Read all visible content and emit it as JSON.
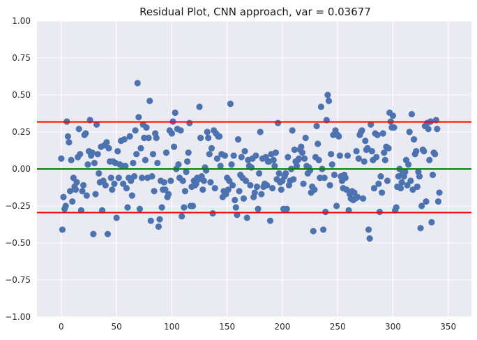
{
  "chart_data": {
    "type": "scatter",
    "title": "Residual Plot, CNN approach, var = 0.03677",
    "xlabel": "",
    "ylabel": "",
    "xlim": [
      -22,
      371
    ],
    "ylim": [
      -1.0,
      1.0
    ],
    "x_ticks": [
      0,
      50,
      100,
      150,
      200,
      250,
      300,
      350
    ],
    "x_tick_labels": [
      "0",
      "50",
      "100",
      "150",
      "200",
      "250",
      "300",
      "350"
    ],
    "y_ticks": [
      -1.0,
      -0.75,
      -0.5,
      -0.25,
      0.0,
      0.25,
      0.5,
      0.75,
      1.0
    ],
    "y_tick_labels": [
      "−1.00",
      "−0.75",
      "−0.50",
      "−0.25",
      "0.00",
      "0.25",
      "0.50",
      "0.75",
      "1.00"
    ],
    "grid": true,
    "background": "#EAEAF2",
    "point_color": "#4C72B0",
    "reference_lines": [
      {
        "y": 0.318,
        "color": "#FF0000"
      },
      {
        "y": 0.0,
        "color": "#008000"
      },
      {
        "y": -0.295,
        "color": "#FF0000"
      }
    ],
    "points": [
      [
        0,
        0.07
      ],
      [
        1,
        -0.41
      ],
      [
        2,
        -0.19
      ],
      [
        3,
        -0.27
      ],
      [
        4,
        -0.25
      ],
      [
        5,
        0.32
      ],
      [
        6,
        0.22
      ],
      [
        7,
        0.18
      ],
      [
        8,
        -0.15
      ],
      [
        9,
        0.06
      ],
      [
        10,
        -0.22
      ],
      [
        11,
        -0.06
      ],
      [
        12,
        -0.12
      ],
      [
        13,
        -0.14
      ],
      [
        14,
        -0.09
      ],
      [
        15,
        0.08
      ],
      [
        16,
        0.27
      ],
      [
        17,
        0.1
      ],
      [
        18,
        -0.28
      ],
      [
        19,
        -0.15
      ],
      [
        20,
        -0.11
      ],
      [
        21,
        0.23
      ],
      [
        22,
        0.24
      ],
      [
        23,
        -0.18
      ],
      [
        24,
        0.03
      ],
      [
        25,
        0.12
      ],
      [
        26,
        0.33
      ],
      [
        27,
        0.09
      ],
      [
        28,
        0.11
      ],
      [
        29,
        -0.44
      ],
      [
        30,
        0.04
      ],
      [
        31,
        -0.17
      ],
      [
        32,
        0.3
      ],
      [
        33,
        0.1
      ],
      [
        34,
        -0.03
      ],
      [
        35,
        -0.09
      ],
      [
        36,
        0.15
      ],
      [
        37,
        -0.28
      ],
      [
        38,
        -0.08
      ],
      [
        39,
        0.16
      ],
      [
        40,
        -0.11
      ],
      [
        41,
        0.18
      ],
      [
        42,
        -0.44
      ],
      [
        43,
        0.14
      ],
      [
        44,
        0.05
      ],
      [
        45,
        -0.06
      ],
      [
        46,
        -0.14
      ],
      [
        47,
        0.05
      ],
      [
        48,
        -0.1
      ],
      [
        49,
        0.04
      ],
      [
        50,
        -0.33
      ],
      [
        51,
        0.12
      ],
      [
        52,
        -0.06
      ],
      [
        53,
        0.03
      ],
      [
        54,
        0.19
      ],
      [
        55,
        0.02
      ],
      [
        56,
        -0.1
      ],
      [
        57,
        0.2
      ],
      [
        58,
        0.02
      ],
      [
        59,
        -0.13
      ],
      [
        60,
        -0.26
      ],
      [
        61,
        -0.06
      ],
      [
        62,
        0.22
      ],
      [
        63,
        -0.08
      ],
      [
        64,
        -0.18
      ],
      [
        65,
        0.04
      ],
      [
        66,
        -0.05
      ],
      [
        67,
        0.26
      ],
      [
        68,
        0.1
      ],
      [
        69,
        0.58
      ],
      [
        70,
        0.35
      ],
      [
        71,
        -0.27
      ],
      [
        72,
        0.14
      ],
      [
        73,
        -0.06
      ],
      [
        74,
        0.3
      ],
      [
        75,
        0.21
      ],
      [
        76,
        0.06
      ],
      [
        77,
        0.28
      ],
      [
        78,
        -0.06
      ],
      [
        79,
        0.21
      ],
      [
        80,
        0.46
      ],
      [
        81,
        -0.35
      ],
      [
        82,
        -0.05
      ],
      [
        83,
        0.1
      ],
      [
        84,
        -0.15
      ],
      [
        85,
        0.24
      ],
      [
        86,
        0.21
      ],
      [
        87,
        0.04
      ],
      [
        88,
        -0.39
      ],
      [
        89,
        -0.34
      ],
      [
        90,
        -0.08
      ],
      [
        91,
        -0.26
      ],
      [
        92,
        -0.14
      ],
      [
        93,
        -0.09
      ],
      [
        94,
        -0.14
      ],
      [
        95,
        0.11
      ],
      [
        96,
        -0.19
      ],
      [
        97,
        -0.17
      ],
      [
        98,
        0.26
      ],
      [
        99,
        -0.08
      ],
      [
        100,
        0.24
      ],
      [
        101,
        0.32
      ],
      [
        102,
        0.15
      ],
      [
        103,
        0.38
      ],
      [
        104,
        0.0
      ],
      [
        105,
        0.27
      ],
      [
        106,
        0.03
      ],
      [
        107,
        -0.06
      ],
      [
        108,
        0.26
      ],
      [
        109,
        -0.32
      ],
      [
        110,
        -0.08
      ],
      [
        111,
        -0.26
      ],
      [
        112,
        -0.15
      ],
      [
        113,
        -0.02
      ],
      [
        114,
        0.05
      ],
      [
        115,
        0.11
      ],
      [
        116,
        0.31
      ],
      [
        117,
        -0.25
      ],
      [
        118,
        -0.12
      ],
      [
        119,
        -0.25
      ],
      [
        120,
        -0.08
      ],
      [
        121,
        -0.11
      ],
      [
        122,
        -0.1
      ],
      [
        123,
        -0.06
      ],
      [
        124,
        -0.07
      ],
      [
        125,
        0.42
      ],
      [
        126,
        0.21
      ],
      [
        127,
        -0.05
      ],
      [
        128,
        -0.14
      ],
      [
        129,
        -0.08
      ],
      [
        130,
        0.01
      ],
      [
        131,
        -0.01
      ],
      [
        132,
        0.25
      ],
      [
        133,
        0.21
      ],
      [
        134,
        0.1
      ],
      [
        135,
        -0.09
      ],
      [
        136,
        0.14
      ],
      [
        137,
        -0.3
      ],
      [
        138,
        0.26
      ],
      [
        139,
        -0.13
      ],
      [
        140,
        0.24
      ],
      [
        141,
        0.07
      ],
      [
        142,
        0.22
      ],
      [
        143,
        0.22
      ],
      [
        144,
        0.02
      ],
      [
        145,
        0.1
      ],
      [
        146,
        -0.19
      ],
      [
        147,
        -0.15
      ],
      [
        148,
        0.09
      ],
      [
        149,
        -0.17
      ],
      [
        150,
        -0.06
      ],
      [
        151,
        -0.14
      ],
      [
        152,
        -0.08
      ],
      [
        153,
        0.44
      ],
      [
        154,
        0.03
      ],
      [
        155,
        -0.11
      ],
      [
        156,
        0.09
      ],
      [
        157,
        -0.21
      ],
      [
        158,
        -0.26
      ],
      [
        159,
        -0.31
      ],
      [
        160,
        0.2
      ],
      [
        161,
        -0.15
      ],
      [
        162,
        -0.04
      ],
      [
        163,
        0.08
      ],
      [
        164,
        -0.06
      ],
      [
        165,
        -0.2
      ],
      [
        166,
        0.12
      ],
      [
        167,
        -0.08
      ],
      [
        168,
        -0.33
      ],
      [
        169,
        0.06
      ],
      [
        170,
        0.02
      ],
      [
        171,
        -0.11
      ],
      [
        172,
        0.01
      ],
      [
        173,
        0.07
      ],
      [
        174,
        -0.19
      ],
      [
        175,
        -0.16
      ],
      [
        176,
        0.09
      ],
      [
        177,
        -0.12
      ],
      [
        178,
        -0.27
      ],
      [
        179,
        -0.03
      ],
      [
        180,
        0.25
      ],
      [
        181,
        -0.17
      ],
      [
        182,
        0.07
      ],
      [
        183,
        -0.12
      ],
      [
        184,
        -0.1
      ],
      [
        185,
        0.08
      ],
      [
        186,
        -0.11
      ],
      [
        187,
        0.05
      ],
      [
        188,
        0.05
      ],
      [
        189,
        -0.35
      ],
      [
        190,
        0.1
      ],
      [
        191,
        -0.13
      ],
      [
        192,
        0.06
      ],
      [
        193,
        0.02
      ],
      [
        194,
        0.11
      ],
      [
        195,
        -0.07
      ],
      [
        196,
        0.31
      ],
      [
        197,
        -0.03
      ],
      [
        198,
        -0.09
      ],
      [
        199,
        -0.14
      ],
      [
        200,
        -0.08
      ],
      [
        201,
        -0.27
      ],
      [
        202,
        -0.05
      ],
      [
        203,
        -0.03
      ],
      [
        204,
        -0.27
      ],
      [
        205,
        0.08
      ],
      [
        206,
        -0.11
      ],
      [
        207,
        -0.08
      ],
      [
        208,
        0.0
      ],
      [
        209,
        0.26
      ],
      [
        210,
        -0.07
      ],
      [
        211,
        0.13
      ],
      [
        212,
        0.05
      ],
      [
        213,
        0.02
      ],
      [
        214,
        0.06
      ],
      [
        215,
        0.07
      ],
      [
        216,
        0.13
      ],
      [
        217,
        0.15
      ],
      [
        218,
        0.11
      ],
      [
        219,
        -0.1
      ],
      [
        220,
        0.07
      ],
      [
        221,
        0.21
      ],
      [
        222,
        0.02
      ],
      [
        223,
        -0.03
      ],
      [
        224,
        0.01
      ],
      [
        225,
        -0.01
      ],
      [
        226,
        -0.16
      ],
      [
        227,
        -0.12
      ],
      [
        228,
        -0.42
      ],
      [
        229,
        -0.14
      ],
      [
        230,
        0.08
      ],
      [
        231,
        0.29
      ],
      [
        232,
        0.17
      ],
      [
        233,
        0.06
      ],
      [
        234,
        -0.06
      ],
      [
        235,
        0.42
      ],
      [
        236,
        0.0
      ],
      [
        237,
        -0.41
      ],
      [
        238,
        -0.06
      ],
      [
        239,
        -0.29
      ],
      [
        240,
        0.33
      ],
      [
        241,
        0.5
      ],
      [
        242,
        0.46
      ],
      [
        243,
        -0.11
      ],
      [
        244,
        0.1
      ],
      [
        245,
        0.03
      ],
      [
        246,
        0.23
      ],
      [
        247,
        -0.04
      ],
      [
        248,
        0.26
      ],
      [
        249,
        -0.25
      ],
      [
        250,
        0.23
      ],
      [
        251,
        0.22
      ],
      [
        252,
        0.09
      ],
      [
        253,
        -0.05
      ],
      [
        254,
        -0.08
      ],
      [
        255,
        -0.13
      ],
      [
        256,
        -0.04
      ],
      [
        257,
        -0.06
      ],
      [
        258,
        -0.14
      ],
      [
        259,
        0.09
      ],
      [
        260,
        -0.28
      ],
      [
        261,
        -0.17
      ],
      [
        262,
        -0.2
      ],
      [
        263,
        -0.15
      ],
      [
        264,
        -0.21
      ],
      [
        265,
        -0.16
      ],
      [
        266,
        -0.2
      ],
      [
        267,
        0.12
      ],
      [
        268,
        -0.19
      ],
      [
        269,
        0.07
      ],
      [
        270,
        0.23
      ],
      [
        271,
        0.25
      ],
      [
        272,
        0.26
      ],
      [
        273,
        -0.2
      ],
      [
        274,
        0.05
      ],
      [
        275,
        0.19
      ],
      [
        276,
        0.13
      ],
      [
        277,
        0.14
      ],
      [
        278,
        -0.41
      ],
      [
        279,
        -0.47
      ],
      [
        280,
        0.3
      ],
      [
        281,
        0.12
      ],
      [
        282,
        0.06
      ],
      [
        283,
        -0.13
      ],
      [
        284,
        0.24
      ],
      [
        285,
        0.08
      ],
      [
        286,
        0.23
      ],
      [
        287,
        -0.1
      ],
      [
        288,
        -0.29
      ],
      [
        289,
        -0.05
      ],
      [
        290,
        -0.16
      ],
      [
        291,
        0.24
      ],
      [
        292,
        0.11
      ],
      [
        293,
        0.06
      ],
      [
        294,
        0.15
      ],
      [
        295,
        -0.08
      ],
      [
        296,
        0.14
      ],
      [
        297,
        0.38
      ],
      [
        298,
        0.32
      ],
      [
        299,
        0.28
      ],
      [
        300,
        0.36
      ],
      [
        301,
        0.28
      ],
      [
        302,
        -0.28
      ],
      [
        303,
        -0.26
      ],
      [
        304,
        -0.12
      ],
      [
        305,
        -0.05
      ],
      [
        306,
        0.0
      ],
      [
        307,
        -0.13
      ],
      [
        308,
        -0.09
      ],
      [
        309,
        -0.03
      ],
      [
        310,
        -0.05
      ],
      [
        311,
        -0.02
      ],
      [
        312,
        0.06
      ],
      [
        313,
        -0.11
      ],
      [
        314,
        0.03
      ],
      [
        315,
        0.25
      ],
      [
        316,
        -0.08
      ],
      [
        317,
        0.37
      ],
      [
        318,
        -0.14
      ],
      [
        319,
        0.2
      ],
      [
        320,
        0.1
      ],
      [
        321,
        0.12
      ],
      [
        322,
        -0.12
      ],
      [
        323,
        -0.02
      ],
      [
        324,
        -0.05
      ],
      [
        325,
        -0.4
      ],
      [
        326,
        -0.25
      ],
      [
        327,
        0.13
      ],
      [
        328,
        0.12
      ],
      [
        329,
        0.29
      ],
      [
        330,
        -0.22
      ],
      [
        331,
        0.31
      ],
      [
        332,
        0.27
      ],
      [
        333,
        0.06
      ],
      [
        334,
        0.32
      ],
      [
        335,
        -0.36
      ],
      [
        336,
        -0.04
      ],
      [
        337,
        0.11
      ],
      [
        338,
        0.1
      ],
      [
        339,
        0.33
      ],
      [
        340,
        0.27
      ],
      [
        341,
        -0.22
      ],
      [
        342,
        -0.16
      ]
    ]
  }
}
